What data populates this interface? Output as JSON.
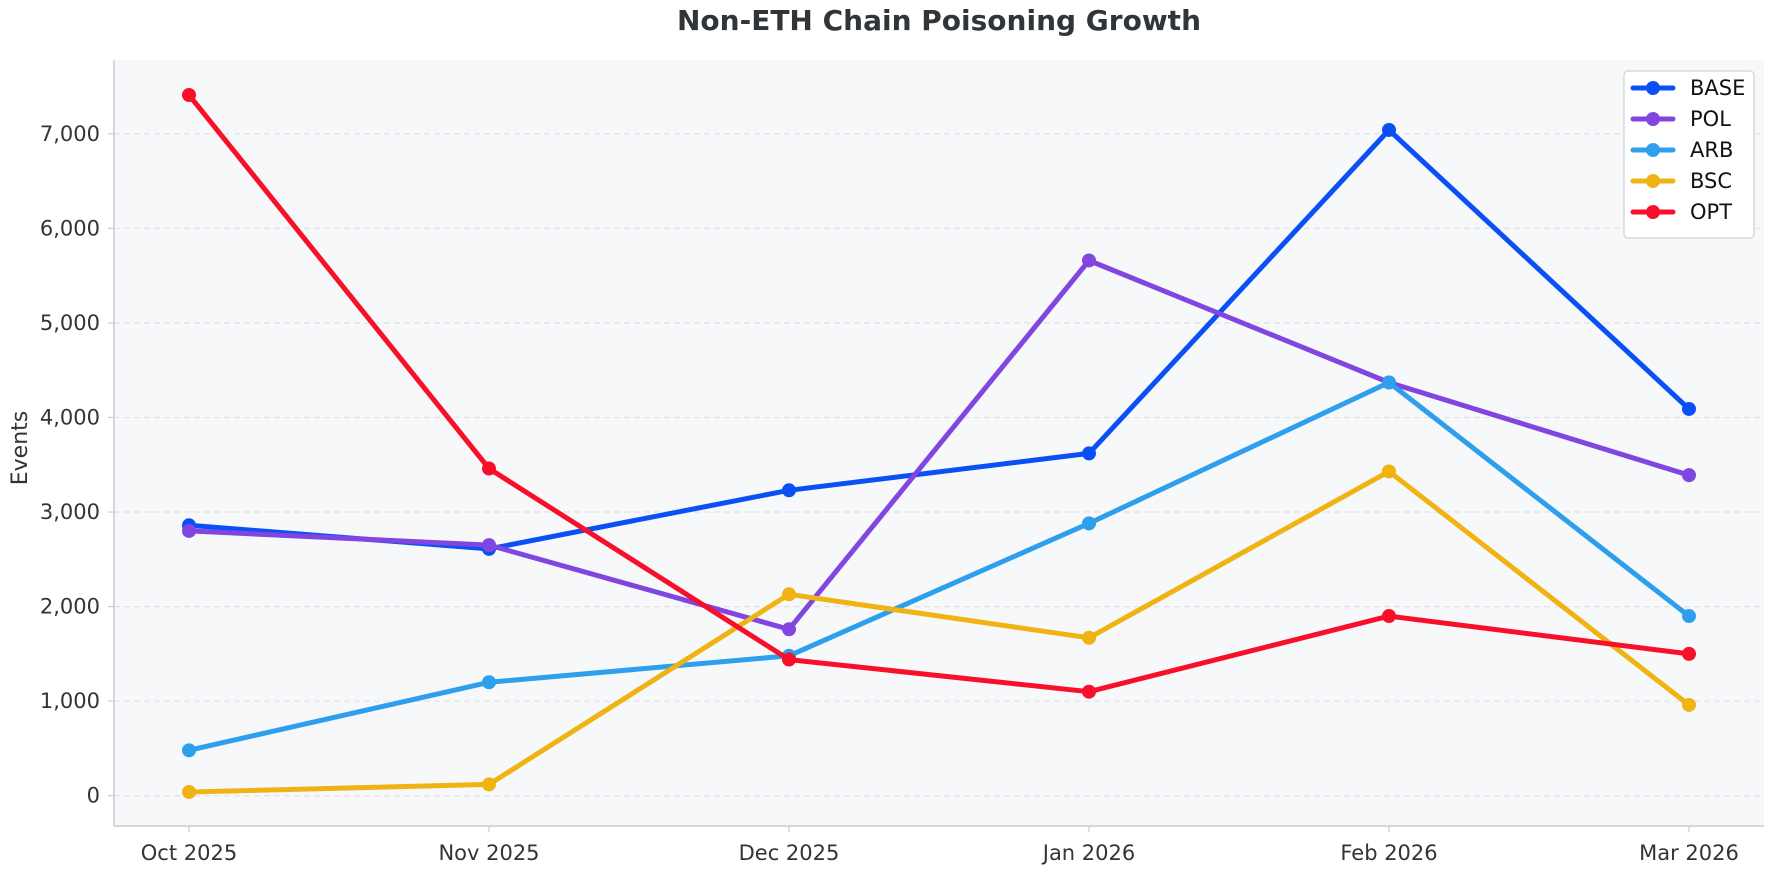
{
  "chart_data": {
    "type": "line",
    "title": "Non-ETH Chain Poisoning Growth",
    "xlabel": "",
    "ylabel": "Events",
    "categories": [
      "Oct 2025",
      "Nov 2025",
      "Dec 2025",
      "Jan 2026",
      "Feb 2026",
      "Mar 2026"
    ],
    "ylim": [
      -320,
      7780
    ],
    "yticks": [
      0,
      1000,
      2000,
      3000,
      4000,
      5000,
      6000,
      7000
    ],
    "ytick_labels": [
      "0",
      "1,000",
      "2,000",
      "3,000",
      "4,000",
      "5,000",
      "6,000",
      "7,000"
    ],
    "grid": "horizontal dashed",
    "legend_position": "top-right",
    "background": "#f7f8fa",
    "series": [
      {
        "name": "BASE",
        "color": "#0b50f5",
        "values": [
          2860,
          2610,
          3230,
          3620,
          7040,
          4090
        ]
      },
      {
        "name": "POL",
        "color": "#8145e0",
        "values": [
          2800,
          2650,
          1760,
          5660,
          4370,
          3390
        ]
      },
      {
        "name": "ARB",
        "color": "#2d9fec",
        "values": [
          480,
          1200,
          1480,
          2880,
          4370,
          1900
        ]
      },
      {
        "name": "BSC",
        "color": "#efb312",
        "values": [
          40,
          120,
          2130,
          1670,
          3430,
          960
        ]
      },
      {
        "name": "OPT",
        "color": "#f8102b",
        "values": [
          7410,
          3460,
          1440,
          1100,
          1900,
          1500
        ]
      }
    ]
  }
}
